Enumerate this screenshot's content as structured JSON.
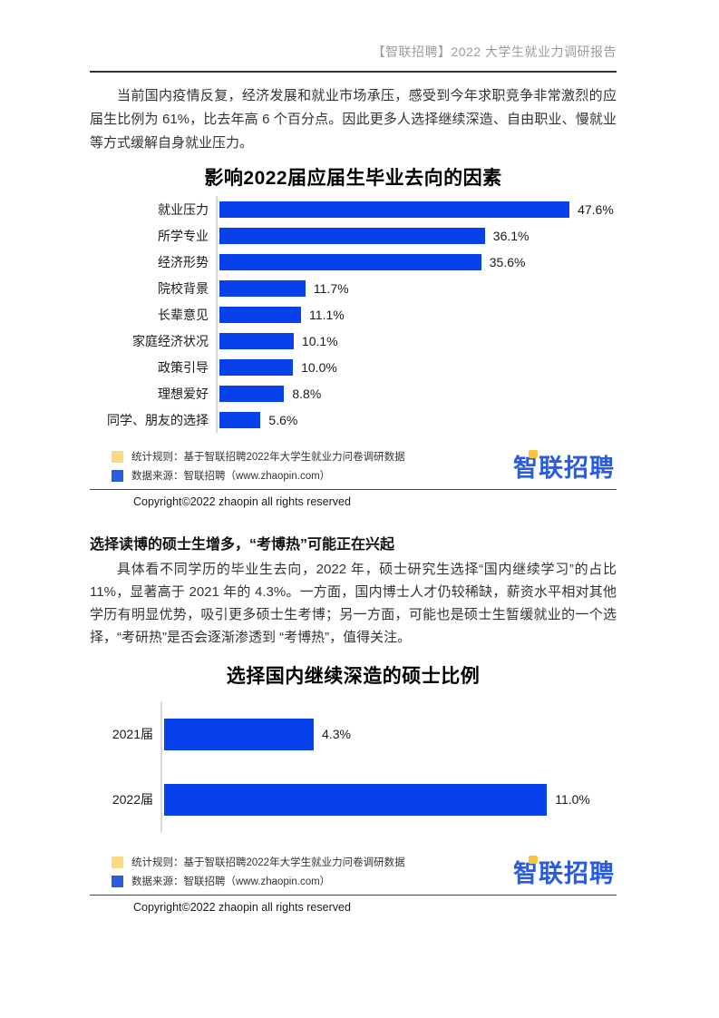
{
  "page": {
    "header": "【智联招聘】2022 大学生就业力调研报告",
    "copyright": "Copyright©2022 zhaopin all rights reserved"
  },
  "intro_paragraph": "当前国内疫情反复，经济发展和就业市场承压，感受到今年求职竞争非常激烈的应届生比例为 61%，比去年高 6 个百分点。因此更多人选择继续深造、自由职业、慢就业等方式缓解自身就业压力。",
  "section": {
    "heading": "选择读博的硕士生增多，“考博热”可能正在兴起",
    "paragraph": "具体看不同学历的毕业生去向，2022 年，硕士研究生选择“国内继续学习”的占比 11%，显著高于 2021 年的 4.3%。一方面，国内博士人才仍较稀缺，薪资水平相对其他学历有明显优势，吸引更多硕士生考博；另一方面，可能也是硕士生暂缓就业的一个选择，“考研热”是否会逐渐渗透到 “考博热”，值得关注。"
  },
  "legend": {
    "rule_label": "统计规则：基于智联招聘2022年大学生就业力问卷调研数据",
    "source_label": "数据来源：智联招聘（www.zhaopin.com）",
    "rule_color": "#FAD980",
    "source_color": "#2B5BE1"
  },
  "logo": {
    "text": "智联招聘",
    "color": "#2B5BDF",
    "accent": "#F9C437"
  },
  "chart_data": [
    {
      "type": "bar",
      "orientation": "horizontal",
      "title": "影响2022届应届生毕业去向的因素",
      "categories": [
        "就业压力",
        "所学专业",
        "经济形势",
        "院校背景",
        "长辈意见",
        "家庭经济状况",
        "政策引导",
        "理想爱好",
        "同学、朋友的选择"
      ],
      "values": [
        47.6,
        36.1,
        35.6,
        11.7,
        11.1,
        10.1,
        10.0,
        8.8,
        5.6
      ],
      "labels": [
        "47.6%",
        "36.1%",
        "35.6%",
        "11.7%",
        "11.1%",
        "10.1%",
        "10.0%",
        "8.8%",
        "5.6%"
      ],
      "xlabel": "",
      "ylabel": "",
      "xmax": 54,
      "grid": false,
      "legend_position": "none",
      "bar_color": "#0641EC",
      "axis_color": "#d9d9d9"
    },
    {
      "type": "bar",
      "orientation": "horizontal",
      "title": "选择国内继续深造的硕士比例",
      "categories": [
        "2021届",
        "2022届"
      ],
      "values": [
        4.3,
        11.0
      ],
      "labels": [
        "4.3%",
        "11.0%"
      ],
      "xlabel": "",
      "ylabel": "",
      "xmax": 13,
      "grid": false,
      "legend_position": "none",
      "bar_color": "#0641EC",
      "axis_color": "#d9d9d9"
    }
  ]
}
